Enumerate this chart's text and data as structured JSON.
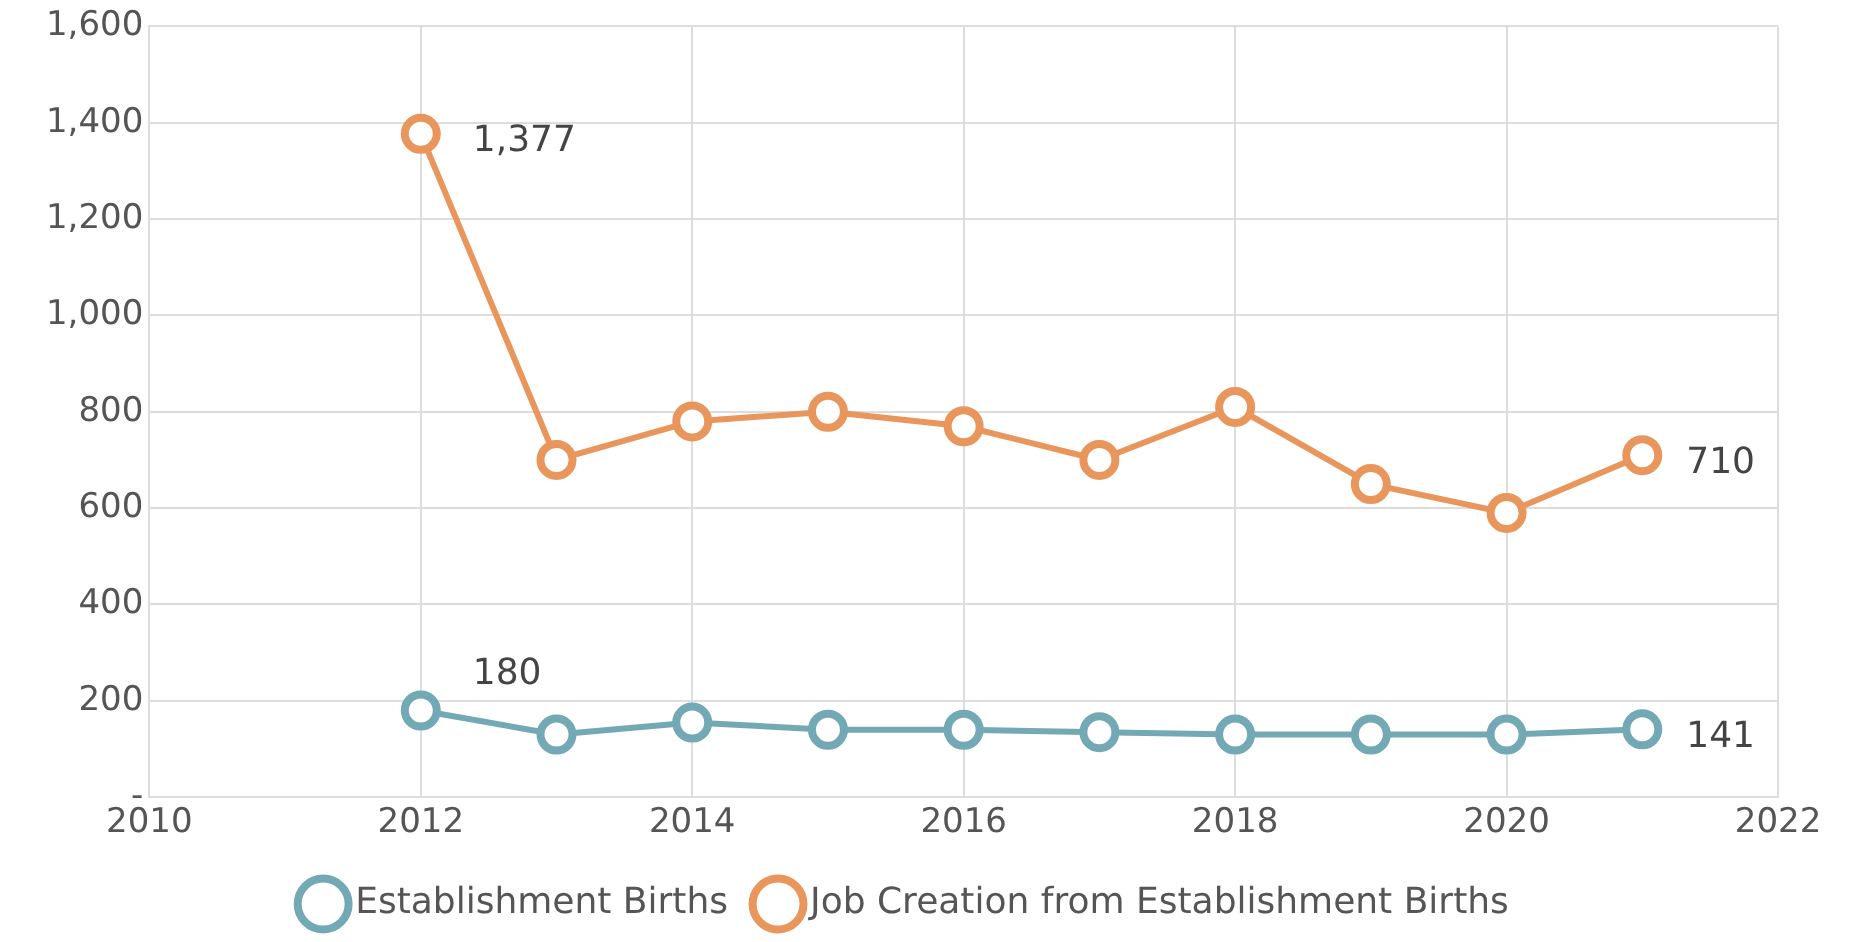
{
  "chart_data": {
    "type": "line",
    "x": [
      2012,
      2013,
      2014,
      2015,
      2016,
      2017,
      2018,
      2019,
      2020,
      2021
    ],
    "series": [
      {
        "name": "Establishment Births",
        "color": "#72a9b5",
        "values": [
          180,
          130,
          155,
          140,
          140,
          135,
          130,
          130,
          130,
          141
        ],
        "value_labels": [
          "180",
          null,
          null,
          null,
          null,
          null,
          null,
          null,
          null,
          "141"
        ]
      },
      {
        "name": "Job Creation from Establishment Births",
        "color": "#e9965c",
        "values": [
          1377,
          700,
          780,
          800,
          770,
          700,
          810,
          650,
          590,
          710
        ],
        "value_labels": [
          "1,377",
          null,
          null,
          null,
          null,
          null,
          null,
          null,
          null,
          "710"
        ]
      }
    ],
    "xlim": [
      2010,
      2022
    ],
    "xticks": [
      2010,
      2012,
      2014,
      2016,
      2018,
      2020,
      2022
    ],
    "ylim": [
      0,
      1600
    ],
    "yticks": [
      {
        "value": 0,
        "label": "-"
      },
      {
        "value": 200,
        "label": "200"
      },
      {
        "value": 400,
        "label": "400"
      },
      {
        "value": 600,
        "label": "600"
      },
      {
        "value": 800,
        "label": "800"
      },
      {
        "value": 1000,
        "label": "1,000"
      },
      {
        "value": 1200,
        "label": "1,200"
      },
      {
        "value": 1400,
        "label": "1,400"
      },
      {
        "value": 1600,
        "label": "1,600"
      }
    ],
    "grid": true,
    "legend": "bottom",
    "marker": "circle",
    "line_style": "solid"
  }
}
